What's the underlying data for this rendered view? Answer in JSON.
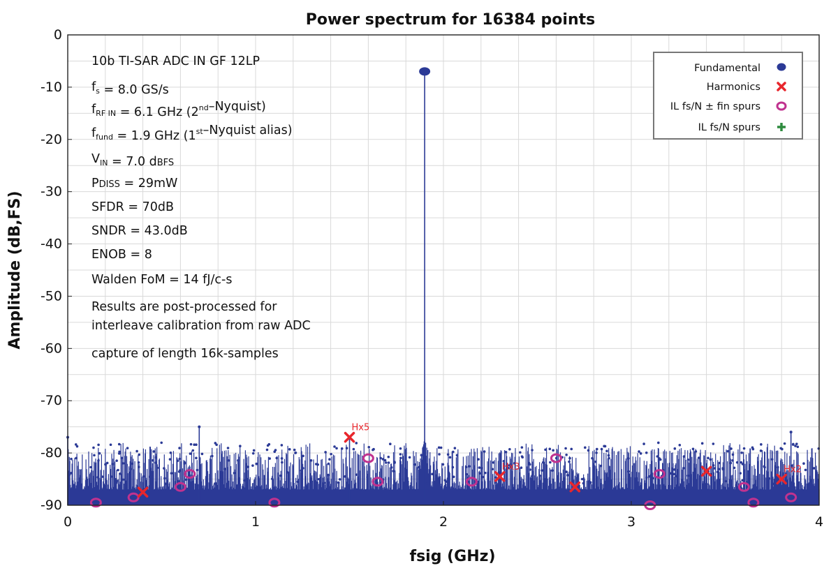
{
  "chart_data": {
    "type": "line",
    "title": "Power spectrum for 16384 points",
    "xlabel": "fsig (GHz)",
    "ylabel": "Amplitude (dB,FS)",
    "xlim": [
      0,
      4
    ],
    "ylim": [
      -90,
      0
    ],
    "x_ticks": [
      "0",
      "1",
      "2",
      "3",
      "4"
    ],
    "y_ticks": [
      "0",
      "-10",
      "-20",
      "-30",
      "-40",
      "-50",
      "-60",
      "-70",
      "-80",
      "-90"
    ],
    "grid": true,
    "legend_position": "top-right",
    "colors": {
      "spectrum": "#2b3a96",
      "fundamental": "#2b3a96",
      "harmonics": "#e8262c",
      "il_fin_spurs": "#c0328f",
      "il_spurs": "#2e8b3e"
    },
    "annotation_lines": [
      "10b TI-SAR ADC IN GF 12LP",
      "fs = 8.0 GS/s",
      "fRF IN = 6.1 GHz (2nd–Nyquist)",
      "ffund = 1.9 GHz (1st–Nyquist alias)",
      "VIN  = 7.0 dBFS",
      "PDISS = 29mW",
      "SFDR = 70dB",
      "SNDR = 43.0dB",
      "ENOB = 8",
      "Walden FoM = 14 fJ/c-s",
      "Results are post-processed for",
      "interleave calibration from raw ADC",
      "capture of length 16k-samples"
    ],
    "legend": [
      {
        "label": "Fundamental",
        "marker": "filled-circle"
      },
      {
        "label": "Harmonics",
        "marker": "x-cross"
      },
      {
        "label": "IL  fs/N ± fin  spurs",
        "marker": "ring"
      },
      {
        "label": "IL  fs/N spurs",
        "marker": "plus"
      }
    ],
    "fundamental": {
      "x": 1.9,
      "y": -7
    },
    "harmonics": [
      {
        "label": "",
        "x": 0.4,
        "y": -87.5
      },
      {
        "label": "Hx5",
        "x": 1.5,
        "y": -77
      },
      {
        "label": "Hx3",
        "x": 2.3,
        "y": -84.5
      },
      {
        "label": "",
        "x": 2.7,
        "y": -86.5
      },
      {
        "label": "",
        "x": 3.4,
        "y": -83.5
      },
      {
        "label": "Hx2",
        "x": 3.8,
        "y": -85
      }
    ],
    "il_fin_spurs": [
      {
        "x": 0.15,
        "y": -89.5
      },
      {
        "x": 0.35,
        "y": -88.5
      },
      {
        "x": 0.6,
        "y": -86.5
      },
      {
        "x": 0.65,
        "y": -84
      },
      {
        "x": 1.1,
        "y": -89.5
      },
      {
        "x": 1.6,
        "y": -81
      },
      {
        "x": 1.65,
        "y": -85.5
      },
      {
        "x": 2.15,
        "y": -85.5
      },
      {
        "x": 2.6,
        "y": -81
      },
      {
        "x": 3.1,
        "y": -90
      },
      {
        "x": 3.15,
        "y": -84
      },
      {
        "x": 3.6,
        "y": -86.5
      },
      {
        "x": 3.65,
        "y": -89.5
      },
      {
        "x": 3.85,
        "y": -88.5
      }
    ],
    "spectrum_peaks": [
      {
        "x": 0.0,
        "y": -77
      },
      {
        "x": 0.7,
        "y": -75
      },
      {
        "x": 1.5,
        "y": -77
      },
      {
        "x": 1.9,
        "y": -7
      },
      {
        "x": 3.85,
        "y": -76
      }
    ],
    "noise_floor": [
      -90,
      -80
    ]
  }
}
